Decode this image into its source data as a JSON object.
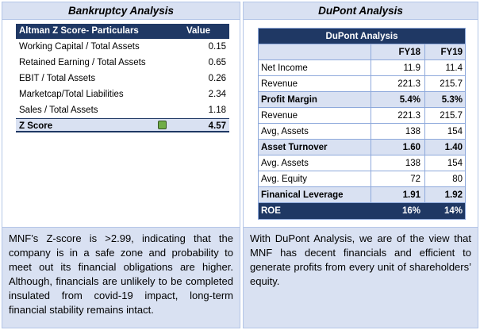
{
  "left": {
    "header": "Bankruptcy Analysis",
    "table": {
      "col_particulars": "Altman Z Score- Particulars",
      "col_value": "Value",
      "rows": [
        {
          "label": "Working Capital / Total Assets",
          "value": "0.15"
        },
        {
          "label": "Retained Earning / Total Assets",
          "value": "0.65"
        },
        {
          "label": "EBIT / Total Assets",
          "value": "0.26"
        },
        {
          "label": "Marketcap/Total Liabilities",
          "value": "2.34"
        },
        {
          "label": "Sales / Total Assets",
          "value": "1.18"
        }
      ],
      "total": {
        "label": "Z Score",
        "value": "4.57",
        "indicator_color": "#70ad47"
      }
    },
    "text": "MNF’s Z-score is >2.99, indicating that the company is in a safe zone and probability to meet out its financial obligations are higher. Although, financials are unlikely to be completed insulated from covid-19 impact, long-term financial stability remains intact."
  },
  "right": {
    "header": "DuPont Analysis",
    "table": {
      "title": "DuPont Analysis",
      "years": [
        "FY18",
        "FY19"
      ],
      "rows": [
        {
          "label": "Net Income",
          "v1": "11.9",
          "v2": "11.4"
        },
        {
          "label": "Revenue",
          "v1": "221.3",
          "v2": "215.7"
        },
        {
          "label": "Profit Margin",
          "v1": "5.4%",
          "v2": "5.3%"
        },
        {
          "label": "Revenue",
          "v1": "221.3",
          "v2": "215.7"
        },
        {
          "label": "Avg, Assets",
          "v1": "138",
          "v2": "154"
        },
        {
          "label": "Asset Turnover",
          "v1": "1.60",
          "v2": "1.40"
        },
        {
          "label": "Avg. Assets",
          "v1": "138",
          "v2": "154"
        },
        {
          "label": "Avg. Equity",
          "v1": "72",
          "v2": "80"
        },
        {
          "label": "Finanical Leverage",
          "v1": "1.91",
          "v2": "1.92"
        },
        {
          "label": "ROE",
          "v1": "16%",
          "v2": "14%"
        }
      ]
    },
    "text": "With DuPont Analysis, we are of the view that MNF has decent financials and efficient to generate profits from every unit of shareholders’ equity."
  },
  "colors": {
    "navy": "#1f3864",
    "light_blue": "#d9e1f2",
    "border": "#8ea9db"
  }
}
